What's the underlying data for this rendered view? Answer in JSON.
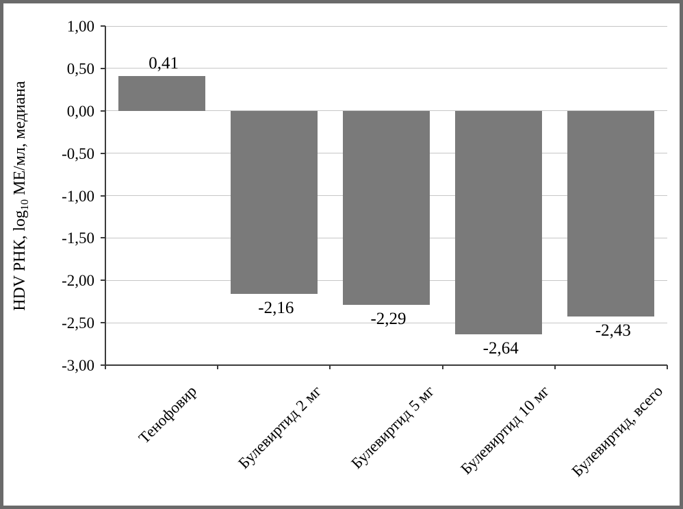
{
  "chart_data": {
    "type": "bar",
    "title": "",
    "xlabel": "",
    "ylabel": {
      "prefix": "HDV РНК, log",
      "subscript": "10",
      "suffix": " МЕ/мл, медиана"
    },
    "categories": [
      "Тенофовир",
      "Булевиртид 2 мг",
      "Булевиртид 5 мг",
      "Булевиртид 10 мг",
      "Булевиртид, всего"
    ],
    "values": [
      0.41,
      -2.16,
      -2.29,
      -2.64,
      -2.43
    ],
    "value_labels": [
      "0,41",
      "-2,16",
      "-2,29",
      "-2,64",
      "-2,43"
    ],
    "ylim": [
      -3.0,
      1.0
    ],
    "ytick_step": 0.5,
    "ytick_labels": [
      "1,00",
      "0,50",
      "0,00",
      "-0,50",
      "-1,00",
      "-1,50",
      "-2,00",
      "-2,50",
      "-3,00"
    ],
    "grid": "horizontal",
    "legend_position": "none",
    "colors": {
      "bar": "#7a7a7a",
      "gridline": "#c6c6c6",
      "axis": "#3a3a3a",
      "frame": "#6a6a6a",
      "background": "#ffffff",
      "text": "#000000"
    }
  }
}
